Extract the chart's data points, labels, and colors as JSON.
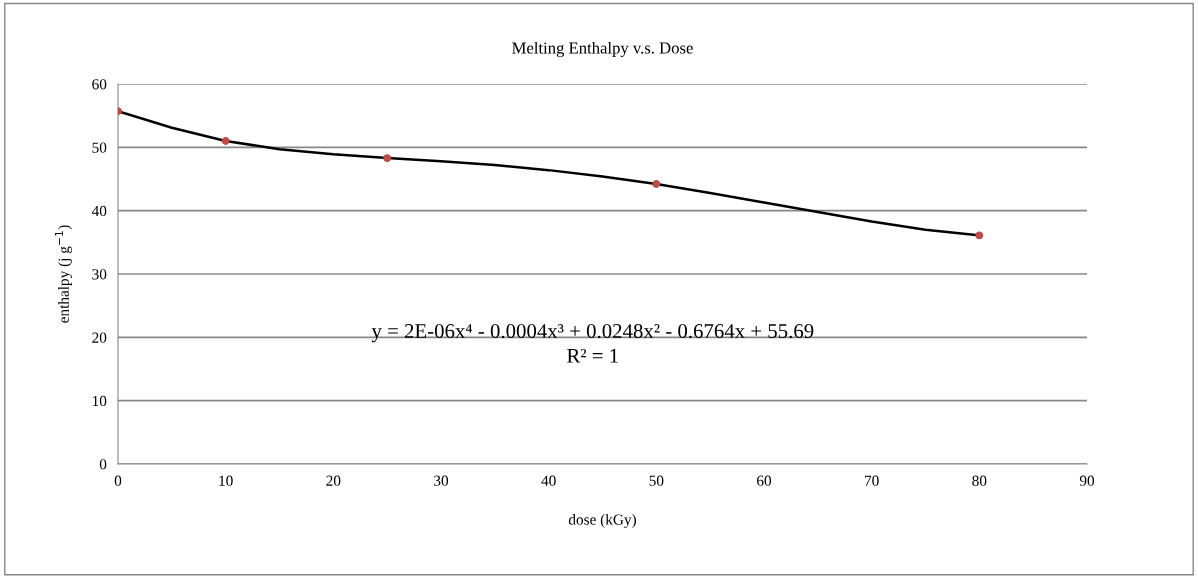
{
  "chart_data": {
    "type": "scatter",
    "title": "Melting Enthalpy v.s. Dose",
    "xlabel": "dose (kGy)",
    "ylabel": "enthalpy (j g$^{−1}$)",
    "annotations": [
      "y = 2E-06x⁴ - 0.0004x³ + 0.0248x² - 0.6764x + 55.69",
      "R² = 1"
    ],
    "series": [
      {
        "color": "#be4b48",
        "marker": "circle",
        "x": [
          0,
          10,
          25,
          50,
          80
        ],
        "values": [
          55.7,
          51.0,
          48.3,
          44.2,
          36.1
        ]
      },
      {
        "type": "line",
        "color": "#000000",
        "marker": "none",
        "line_style": "solid",
        "x": [
          0,
          5,
          10,
          15,
          20,
          25,
          30,
          35,
          40,
          45,
          50,
          55,
          60,
          65,
          70,
          75,
          80
        ],
        "values": [
          55.7,
          53.1,
          51.0,
          49.7,
          48.9,
          48.3,
          47.8,
          47.2,
          46.4,
          45.4,
          44.2,
          42.8,
          41.3,
          39.8,
          38.3,
          37.0,
          36.1
        ]
      }
    ],
    "xlim": [
      0,
      90
    ],
    "xticks": [
      0,
      10,
      20,
      30,
      40,
      50,
      60,
      70,
      80,
      90
    ],
    "ylim": [
      0,
      60
    ],
    "yticks": [
      0,
      10,
      20,
      30,
      40,
      50,
      60
    ],
    "grid": "y",
    "legend": false
  }
}
